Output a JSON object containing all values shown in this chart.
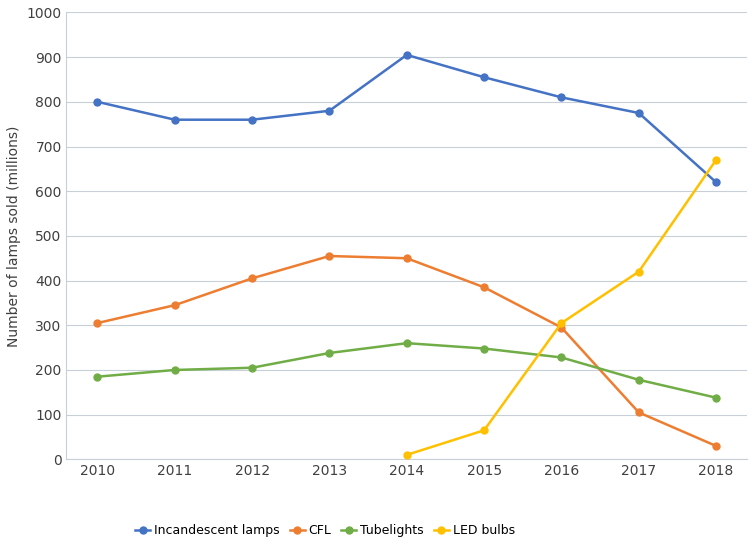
{
  "years": [
    2010,
    2011,
    2012,
    2013,
    2014,
    2015,
    2016,
    2017,
    2018
  ],
  "incandescent": [
    800,
    760,
    760,
    780,
    905,
    855,
    810,
    775,
    620
  ],
  "cfl": [
    305,
    345,
    405,
    455,
    450,
    385,
    295,
    105,
    30
  ],
  "tubelights": [
    185,
    200,
    205,
    238,
    260,
    248,
    228,
    178,
    138
  ],
  "led": [
    null,
    null,
    null,
    null,
    10,
    65,
    305,
    420,
    670
  ],
  "series_colors": {
    "incandescent": "#4472C4",
    "cfl": "#ED7D31",
    "tubelights": "#70AD47",
    "led": "#FFC000"
  },
  "legend_labels": [
    "Incandescent lamps",
    "CFL",
    "Tubelights",
    "LED bulbs"
  ],
  "ylabel": "Number of lamps sold (millions)",
  "ylim": [
    0,
    1000
  ],
  "yticks": [
    0,
    100,
    200,
    300,
    400,
    500,
    600,
    700,
    800,
    900,
    1000
  ],
  "background_color": "#ffffff",
  "plot_bg_color": "#ffffff",
  "grid_color": "#c8cfd8",
  "marker": "o",
  "markersize": 5,
  "linewidth": 1.8,
  "figsize": [
    7.54,
    5.46
  ],
  "dpi": 100
}
